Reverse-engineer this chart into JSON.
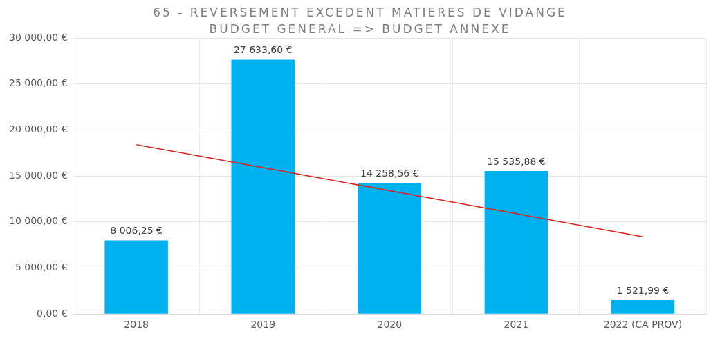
{
  "chart_data": {
    "type": "bar",
    "title": "65 - REVERSEMENT EXCEDENT MATIERES DE VIDANGE",
    "subtitle": "BUDGET GENERAL => BUDGET ANNEXE",
    "categories": [
      "2018",
      "2019",
      "2020",
      "2021",
      "2022 (CA PROV)"
    ],
    "series": [
      {
        "color": "#00b0f0",
        "values": [
          8006.25,
          27633.6,
          14258.56,
          15535.88,
          1521.99
        ],
        "value_labels": [
          "8 006,25 €",
          "27 633,60 €",
          "14 258,56 €",
          "15 535,88 €",
          "1 521,99 €"
        ]
      },
      {
        "type": "line",
        "color": "#e0201c",
        "values": [
          18400,
          15900,
          13400,
          10900,
          8400
        ],
        "marker": "none",
        "line_style": "solid"
      }
    ],
    "ylim": [
      0,
      30000
    ],
    "yticks": [
      {
        "value": 0,
        "label": "0,00 €"
      },
      {
        "value": 5000,
        "label": "5 000,00 €"
      },
      {
        "value": 10000,
        "label": "10 000,00 €"
      },
      {
        "value": 15000,
        "label": "15 000,00 €"
      },
      {
        "value": 20000,
        "label": "20 000,00 €"
      },
      {
        "value": 25000,
        "label": "25 000,00 €"
      },
      {
        "value": 30000,
        "label": "30 000,00 €"
      }
    ],
    "grid": true,
    "legend": false
  }
}
